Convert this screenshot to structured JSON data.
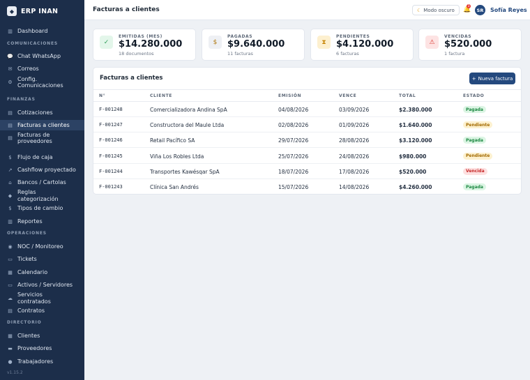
{
  "brand": {
    "name": "ERP INAN",
    "logo_icon": "diamond-icon"
  },
  "sidebar": {
    "items": [
      {
        "key": "dashboard",
        "label": "Dashboard",
        "icon": "bar-chart-icon",
        "glyph": "▥"
      },
      {
        "section": "COMUNICACIONES"
      },
      {
        "key": "chat-whatsapp",
        "label": "Chat WhatsApp",
        "icon": "chat-bubble-icon",
        "glyph": "💬"
      },
      {
        "key": "correos",
        "label": "Correos",
        "icon": "mail-icon",
        "glyph": "✉"
      },
      {
        "key": "config-comunicaciones",
        "label": "Config. Comunicaciones",
        "icon": "gear-icon",
        "glyph": "⚙"
      },
      {
        "section": "FINANZAS"
      },
      {
        "key": "cotizaciones",
        "label": "Cotizaciones",
        "icon": "document-icon",
        "glyph": "▤"
      },
      {
        "key": "facturas-clientes",
        "label": "Facturas a clientes",
        "icon": "invoice-icon",
        "glyph": "▤",
        "active": true
      },
      {
        "key": "facturas-proveedores",
        "label": "Facturas de proveedores",
        "icon": "receipt-icon",
        "glyph": "▤"
      },
      {
        "key": "flujo-caja",
        "label": "Flujo de caja",
        "icon": "cash-icon",
        "glyph": "$"
      },
      {
        "key": "cashflow-proyectado",
        "label": "Cashflow proyectado",
        "icon": "trend-chart-icon",
        "glyph": "↗"
      },
      {
        "key": "bancos-cartolas",
        "label": "Bancos / Cartolas",
        "icon": "bank-icon",
        "glyph": "⌂"
      },
      {
        "key": "reglas-categorizacion",
        "label": "Reglas categorización",
        "icon": "tag-icon",
        "glyph": "◆"
      },
      {
        "key": "tipos-cambio",
        "label": "Tipos de cambio",
        "icon": "exchange-icon",
        "glyph": "$"
      },
      {
        "key": "reportes",
        "label": "Reportes",
        "icon": "report-chart-icon",
        "glyph": "▥"
      },
      {
        "section": "OPERACIONES"
      },
      {
        "key": "noc-monitoreo",
        "label": "NOC / Monitoreo",
        "icon": "satellite-icon",
        "glyph": "◉"
      },
      {
        "key": "tickets",
        "label": "Tickets",
        "icon": "ticket-icon",
        "glyph": "▭"
      },
      {
        "key": "calendario",
        "label": "Calendario",
        "icon": "calendar-icon",
        "glyph": "▦"
      },
      {
        "key": "activos-servidores",
        "label": "Activos / Servidores",
        "icon": "monitor-icon",
        "glyph": "▭"
      },
      {
        "key": "servicios-contratados",
        "label": "Servicios contratados",
        "icon": "cloud-icon",
        "glyph": "☁"
      },
      {
        "key": "contratos",
        "label": "Contratos",
        "icon": "contract-icon",
        "glyph": "▤"
      },
      {
        "section": "DIRECTORIO"
      },
      {
        "key": "clientes",
        "label": "Clientes",
        "icon": "building-icon",
        "glyph": "▦"
      },
      {
        "key": "proveedores",
        "label": "Proveedores",
        "icon": "truck-icon",
        "glyph": "▬"
      },
      {
        "key": "trabajadores",
        "label": "Trabajadores",
        "icon": "people-icon",
        "glyph": "●"
      }
    ],
    "version": "v1.15.2"
  },
  "topbar": {
    "title": "Facturas a clientes",
    "dark_mode_label": "Modo oscuro",
    "dark_mode_icon": "moon-icon",
    "bell_icon": "bell-icon",
    "notification_count": "3",
    "avatar_initials": "SR",
    "user_name": "Sofía Reyes"
  },
  "stats": [
    {
      "key": "emitidas",
      "label": "EMITIDAS (MES)",
      "value": "$14.280.000",
      "sub": "18 documentos",
      "icon": "check-icon",
      "glyph": "✓",
      "bg": "#e3f6ea",
      "fg": "#2e9d57"
    },
    {
      "key": "pagadas",
      "label": "PAGADAS",
      "value": "$9.640.000",
      "sub": "11 facturas",
      "icon": "money-bag-icon",
      "glyph": "$",
      "bg": "#eef0f4",
      "fg": "#b07a12"
    },
    {
      "key": "pendientes",
      "label": "PENDIENTES",
      "value": "$4.120.000",
      "sub": "6 facturas",
      "icon": "hourglass-icon",
      "glyph": "⧗",
      "bg": "#fdf0cf",
      "fg": "#c98a10"
    },
    {
      "key": "vencidas",
      "label": "VENCIDAS",
      "value": "$520.000",
      "sub": "1 factura",
      "icon": "warning-icon",
      "glyph": "⚠",
      "bg": "#fde3e3",
      "fg": "#d9342b"
    }
  ],
  "invoices": {
    "title": "Facturas a clientes",
    "new_button": "Nueva factura",
    "columns": [
      "N°",
      "CLIENTE",
      "EMISIÓN",
      "VENCE",
      "TOTAL",
      "ESTADO"
    ],
    "rows": [
      {
        "num": "F-001248",
        "client": "Comercializadora Andina SpA",
        "issued": "04/08/2026",
        "due": "03/09/2026",
        "total": "$2.380.000",
        "status": "Pagada",
        "status_kind": "paid"
      },
      {
        "num": "F-001247",
        "client": "Constructora del Maule Ltda",
        "issued": "02/08/2026",
        "due": "01/09/2026",
        "total": "$1.640.000",
        "status": "Pendiente",
        "status_kind": "pending"
      },
      {
        "num": "F-001246",
        "client": "Retail Pacífico SA",
        "issued": "29/07/2026",
        "due": "28/08/2026",
        "total": "$3.120.000",
        "status": "Pagada",
        "status_kind": "paid"
      },
      {
        "num": "F-001245",
        "client": "Viña Los Robles Ltda",
        "issued": "25/07/2026",
        "due": "24/08/2026",
        "total": "$980.000",
        "status": "Pendiente",
        "status_kind": "pending"
      },
      {
        "num": "F-001244",
        "client": "Transportes Kawésqar SpA",
        "issued": "18/07/2026",
        "due": "17/08/2026",
        "total": "$520.000",
        "status": "Vencida",
        "status_kind": "overdue"
      },
      {
        "num": "F-001243",
        "client": "Clínica San Andrés",
        "issued": "15/07/2026",
        "due": "14/08/2026",
        "total": "$4.260.000",
        "status": "Pagada",
        "status_kind": "paid"
      }
    ]
  }
}
